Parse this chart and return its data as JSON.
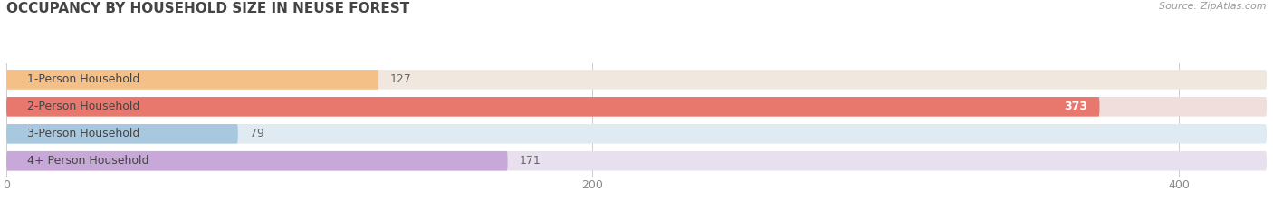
{
  "title": "OCCUPANCY BY HOUSEHOLD SIZE IN NEUSE FOREST",
  "source": "Source: ZipAtlas.com",
  "categories": [
    "1-Person Household",
    "2-Person Household",
    "3-Person Household",
    "4+ Person Household"
  ],
  "values": [
    127,
    373,
    79,
    171
  ],
  "bar_colors": [
    "#f5c088",
    "#e8786e",
    "#a8c8e0",
    "#c8a8d8"
  ],
  "bar_bg_colors": [
    "#f0e8df",
    "#f0dedd",
    "#e0eaf2",
    "#e8e0ef"
  ],
  "xlim": [
    0,
    430
  ],
  "xticks": [
    0,
    200,
    400
  ],
  "title_color": "#555555",
  "source_color": "#999999",
  "value_threshold": 200,
  "value_color_inside": "#ffffff",
  "value_color_outside": "#666666"
}
